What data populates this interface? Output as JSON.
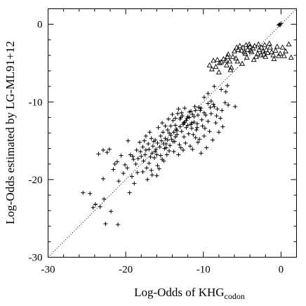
{
  "chart_data": {
    "type": "scatter",
    "title": "",
    "xlabel_main": "Log-Odds of KHG",
    "xlabel_sub": "codon",
    "ylabel": "Log-Odds estimated by LG-ML91+12",
    "xlim": [
      -30,
      2
    ],
    "ylim": [
      -30,
      2
    ],
    "x_ticks": [
      -30,
      -20,
      -10,
      0
    ],
    "y_ticks": [
      0,
      -10,
      -20,
      -30
    ],
    "x_tick_labels": [
      "-30",
      "-20",
      "-10",
      "0"
    ],
    "y_tick_labels": [
      "0",
      "-10",
      "-20",
      "-30"
    ],
    "grid": false,
    "reference_line": {
      "style": "dotted",
      "slope": 1,
      "intercept": 0
    },
    "series": [
      {
        "marker": "plus",
        "points": [
          [
            -25.5,
            -21.7
          ],
          [
            -24.6,
            -21.8
          ],
          [
            -24.2,
            -23.6
          ],
          [
            -23.9,
            -23.2
          ],
          [
            -23.3,
            -23.5
          ],
          [
            -22.8,
            -22.5
          ],
          [
            -22.6,
            -25.7
          ],
          [
            -21.9,
            -24.1
          ],
          [
            -21.0,
            -25.8
          ],
          [
            -23.5,
            -16.7
          ],
          [
            -22.9,
            -16.2
          ],
          [
            -22.4,
            -16.5
          ],
          [
            -22.1,
            -16.1
          ],
          [
            -21.6,
            -18.7
          ],
          [
            -21.1,
            -17.7
          ],
          [
            -20.6,
            -16.9
          ],
          [
            -20.3,
            -19.2
          ],
          [
            -19.8,
            -18.5
          ],
          [
            -19.4,
            -16.8
          ],
          [
            -19.0,
            -17.4
          ],
          [
            -18.7,
            -18.0
          ],
          [
            -18.4,
            -17.3
          ],
          [
            -18.1,
            -16.4
          ],
          [
            -17.8,
            -15.8
          ],
          [
            -17.4,
            -16.2
          ],
          [
            -17.1,
            -15.4
          ],
          [
            -16.8,
            -17.1
          ],
          [
            -16.5,
            -15.7
          ],
          [
            -16.2,
            -14.9
          ],
          [
            -15.9,
            -15.3
          ],
          [
            -15.5,
            -14.4
          ],
          [
            -15.2,
            -13.9
          ],
          [
            -14.9,
            -14.7
          ],
          [
            -14.6,
            -13.6
          ],
          [
            -14.2,
            -13.1
          ],
          [
            -13.9,
            -12.4
          ],
          [
            -13.6,
            -13.0
          ],
          [
            -13.3,
            -11.5
          ],
          [
            -13.0,
            -12.2
          ],
          [
            -12.7,
            -11.8
          ],
          [
            -12.4,
            -12.6
          ],
          [
            -12.1,
            -12.1
          ],
          [
            -11.8,
            -11.3
          ],
          [
            -11.5,
            -13.4
          ],
          [
            -11.2,
            -11.9
          ],
          [
            -10.8,
            -12.8
          ],
          [
            -10.4,
            -11.1
          ],
          [
            -10.1,
            -13.1
          ],
          [
            -9.7,
            -11.7
          ],
          [
            -9.4,
            -12.5
          ],
          [
            -9.1,
            -10.7
          ],
          [
            -8.6,
            -10.6
          ],
          [
            -8.2,
            -10.9
          ],
          [
            -7.6,
            -11.1
          ],
          [
            -6.8,
            -10.4
          ],
          [
            -5.9,
            -10.6
          ],
          [
            -17.7,
            -17.6
          ],
          [
            -17.3,
            -18.5
          ],
          [
            -17.0,
            -17.9
          ],
          [
            -16.7,
            -18.8
          ],
          [
            -16.3,
            -17.2
          ],
          [
            -15.9,
            -18.2
          ],
          [
            -15.5,
            -16.9
          ],
          [
            -15.1,
            -17.6
          ],
          [
            -14.8,
            -15.9
          ],
          [
            -14.4,
            -16.3
          ],
          [
            -14.1,
            -14.8
          ],
          [
            -13.7,
            -15.1
          ],
          [
            -13.4,
            -14.2
          ],
          [
            -13.1,
            -15.5
          ],
          [
            -12.8,
            -13.8
          ],
          [
            -12.5,
            -14.5
          ],
          [
            -12.2,
            -13.3
          ],
          [
            -11.9,
            -14.1
          ],
          [
            -11.6,
            -12.9
          ],
          [
            -11.3,
            -14.2
          ],
          [
            -10.9,
            -13.6
          ],
          [
            -10.5,
            -14.8
          ],
          [
            -10.2,
            -12.3
          ],
          [
            -9.8,
            -13.4
          ],
          [
            -18.9,
            -20.5
          ],
          [
            -20.1,
            -18.1
          ],
          [
            -19.2,
            -19.6
          ],
          [
            -18.5,
            -19.1
          ],
          [
            -17.8,
            -19.0
          ],
          [
            -17.2,
            -20.0
          ],
          [
            -16.6,
            -19.4
          ],
          [
            -16.0,
            -19.5
          ],
          [
            -15.7,
            -18.6
          ],
          [
            -15.3,
            -17.4
          ],
          [
            -14.7,
            -16.8
          ],
          [
            -14.3,
            -15.6
          ],
          [
            -13.8,
            -16.4
          ],
          [
            -13.5,
            -13.5
          ],
          [
            -13.2,
            -16.8
          ],
          [
            -12.9,
            -15.9
          ],
          [
            -12.6,
            -16.2
          ],
          [
            -12.3,
            -15.3
          ],
          [
            -11.7,
            -15.7
          ],
          [
            -11.4,
            -16.1
          ],
          [
            -11.0,
            -14.6
          ],
          [
            -10.7,
            -15.2
          ],
          [
            -10.3,
            -16.6
          ],
          [
            -9.9,
            -14.4
          ],
          [
            -9.6,
            -15.9
          ],
          [
            -9.2,
            -13.8
          ],
          [
            -8.8,
            -14.9
          ],
          [
            -8.4,
            -12.7
          ],
          [
            -8.0,
            -13.9
          ],
          [
            -7.8,
            -12.1
          ],
          [
            -7.5,
            -13.2
          ],
          [
            -7.2,
            -10.1
          ],
          [
            -8.6,
            -8.0
          ],
          [
            -7.7,
            -8.4
          ],
          [
            -7.1,
            -8.7
          ],
          [
            -6.9,
            -7.9
          ],
          [
            -9.9,
            -9.4
          ],
          [
            -9.4,
            -8.9
          ],
          [
            -19.7,
            -15.0
          ],
          [
            -18.2,
            -15.2
          ],
          [
            -17.4,
            -14.4
          ],
          [
            -16.9,
            -13.9
          ],
          [
            -16.4,
            -15.1
          ],
          [
            -15.8,
            -13.3
          ],
          [
            -15.3,
            -12.7
          ],
          [
            -14.9,
            -13.1
          ],
          [
            -14.5,
            -12.2
          ],
          [
            -14.0,
            -11.6
          ],
          [
            -13.6,
            -12.1
          ],
          [
            -13.2,
            -10.9
          ],
          [
            -12.8,
            -11.4
          ],
          [
            -12.4,
            -10.8
          ],
          [
            -12.0,
            -11.9
          ],
          [
            -11.6,
            -11.2
          ],
          [
            -11.1,
            -10.6
          ],
          [
            -10.7,
            -11.7
          ],
          [
            -10.3,
            -10.8
          ],
          [
            -9.9,
            -11.4
          ],
          [
            -9.4,
            -10.2
          ],
          [
            -9.0,
            -11.5
          ],
          [
            -8.7,
            -10.3
          ],
          [
            -8.3,
            -11.8
          ],
          [
            -19.1,
            -17.0
          ],
          [
            -18.6,
            -16.2
          ],
          [
            -18.0,
            -17.0
          ],
          [
            -17.5,
            -16.8
          ],
          [
            -17.0,
            -16.1
          ],
          [
            -16.6,
            -16.6
          ],
          [
            -16.1,
            -16.1
          ],
          [
            -15.6,
            -15.8
          ],
          [
            -15.1,
            -15.4
          ],
          [
            -14.6,
            -14.9
          ],
          [
            -14.2,
            -14.3
          ],
          [
            -13.8,
            -13.9
          ],
          [
            -13.4,
            -13.7
          ],
          [
            -13.0,
            -13.2
          ],
          [
            -12.6,
            -12.9
          ],
          [
            -12.2,
            -12.4
          ],
          [
            -11.8,
            -12.0
          ],
          [
            -11.4,
            -11.6
          ],
          [
            -11.0,
            -11.1
          ],
          [
            -10.6,
            -10.7
          ],
          [
            -17.6,
            -15.0
          ],
          [
            -16.7,
            -14.7
          ],
          [
            -15.4,
            -15.0
          ],
          [
            -14.4,
            -14.0
          ],
          [
            -13.6,
            -14.5
          ],
          [
            -12.9,
            -12.0
          ],
          [
            -12.5,
            -12.7
          ],
          [
            -12.0,
            -13.0
          ],
          [
            -11.5,
            -12.7
          ],
          [
            -11.2,
            -12.6
          ],
          [
            -10.8,
            -13.3
          ],
          [
            -16.2,
            -16.4
          ],
          [
            -16.0,
            -16.8
          ],
          [
            -15.0,
            -16.0
          ],
          [
            -14.8,
            -15.4
          ],
          [
            -13.9,
            -15.1
          ],
          [
            -22.9,
            -19.9
          ],
          [
            -20.9,
            -20.2
          ],
          [
            -19.5,
            -21.7
          ],
          [
            -21.4,
            -18.0
          ],
          [
            -23.9,
            -23.2
          ],
          [
            -9.0,
            -9.9
          ],
          [
            -0.2,
            0.0
          ],
          [
            -0.1,
            -0.1
          ],
          [
            0.0,
            0.1
          ],
          [
            -0.3,
            -0.1
          ]
        ]
      },
      {
        "marker": "triangle",
        "points": [
          [
            -8.7,
            -4.7
          ],
          [
            -8.4,
            -5.5
          ],
          [
            -8.2,
            -4.6
          ],
          [
            -7.9,
            -5.0
          ],
          [
            -7.7,
            -4.9
          ],
          [
            -7.4,
            -4.5
          ],
          [
            -7.1,
            -4.7
          ],
          [
            -6.9,
            -4.2
          ],
          [
            -6.6,
            -4.8
          ],
          [
            -6.4,
            -5.6
          ],
          [
            -6.2,
            -4.2
          ],
          [
            -6.0,
            -3.5
          ],
          [
            -5.8,
            -4.4
          ],
          [
            -5.5,
            -3.3
          ],
          [
            -5.3,
            -2.8
          ],
          [
            -5.1,
            -3.4
          ],
          [
            -4.9,
            -3.0
          ],
          [
            -4.7,
            -3.6
          ],
          [
            -4.5,
            -2.7
          ],
          [
            -4.3,
            -3.3
          ],
          [
            -4.0,
            -2.9
          ],
          [
            -3.8,
            -3.6
          ],
          [
            -3.6,
            -3.1
          ],
          [
            -3.4,
            -2.8
          ],
          [
            -3.2,
            -4.2
          ],
          [
            -3.0,
            -3.8
          ],
          [
            -2.8,
            -3.3
          ],
          [
            -2.5,
            -3.0
          ],
          [
            -2.3,
            -3.5
          ],
          [
            -2.1,
            -2.7
          ],
          [
            -1.9,
            -3.3
          ],
          [
            -1.7,
            -3.7
          ],
          [
            -1.4,
            -3.0
          ],
          [
            -1.2,
            -3.6
          ],
          [
            -1.0,
            -4.0
          ],
          [
            -0.7,
            -3.4
          ],
          [
            -0.5,
            -2.9
          ],
          [
            0.2,
            -3.0
          ],
          [
            0.6,
            -3.5
          ],
          [
            1.0,
            -2.6
          ],
          [
            1.3,
            -4.3
          ],
          [
            -0.9,
            -4.5
          ],
          [
            -2.6,
            -4.0
          ],
          [
            -4.4,
            -4.3
          ],
          [
            -5.6,
            -4.8
          ],
          [
            -7.0,
            -5.3
          ],
          [
            -8.9,
            -5.8
          ],
          [
            -9.2,
            -5.3
          ],
          [
            -8.0,
            -6.2
          ],
          [
            -6.5,
            -5.9
          ],
          [
            -5.0,
            -5.1
          ],
          [
            -3.5,
            -4.6
          ],
          [
            -2.0,
            -4.2
          ],
          [
            -0.3,
            -4.1
          ],
          [
            -4.6,
            -3.8
          ],
          [
            -3.9,
            -3.4
          ],
          [
            -2.9,
            -2.6
          ],
          [
            -1.5,
            -2.5
          ],
          [
            -6.8,
            -3.9
          ],
          [
            -5.7,
            -3.0
          ],
          [
            -4.1,
            -2.6
          ],
          [
            -2.2,
            -3.9
          ],
          [
            -0.1,
            -3.8
          ],
          [
            0.4,
            -4.1
          ]
        ]
      }
    ]
  }
}
